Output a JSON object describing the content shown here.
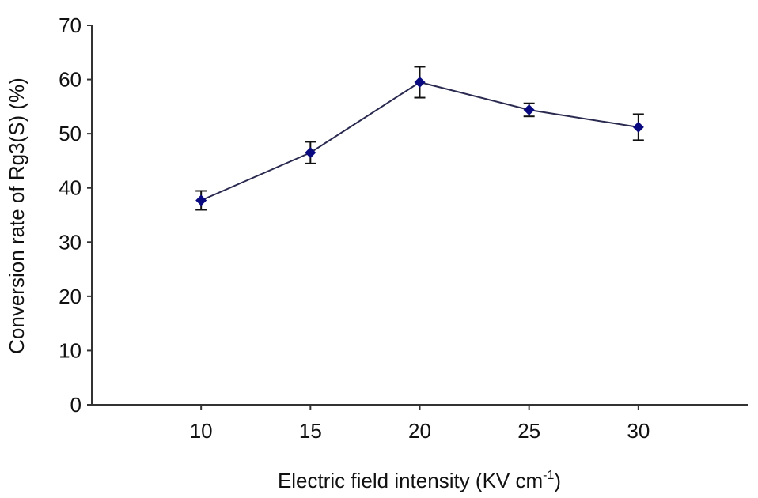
{
  "chart_data": {
    "type": "line",
    "xlabel": "Electric field intensity (KV cm",
    "xlabel_sup": "-1",
    "xlabel_end": ")",
    "ylabel": "Conversion rate of Rg3(S) (%)",
    "xlim": [
      5,
      35
    ],
    "ylim": [
      0,
      70
    ],
    "xticks": [
      10,
      15,
      20,
      25,
      30
    ],
    "yticks": [
      0,
      10,
      20,
      30,
      40,
      50,
      60,
      70
    ],
    "grid": false,
    "series": [
      {
        "x": [
          10,
          15,
          20,
          25,
          30
        ],
        "y": [
          37.7,
          46.5,
          59.5,
          54.4,
          51.2
        ],
        "error": [
          1.75,
          2.0,
          2.85,
          1.2,
          2.4
        ],
        "marker": "diamond",
        "color": "#0a0a80",
        "line_color": "#2a2a50"
      }
    ]
  }
}
